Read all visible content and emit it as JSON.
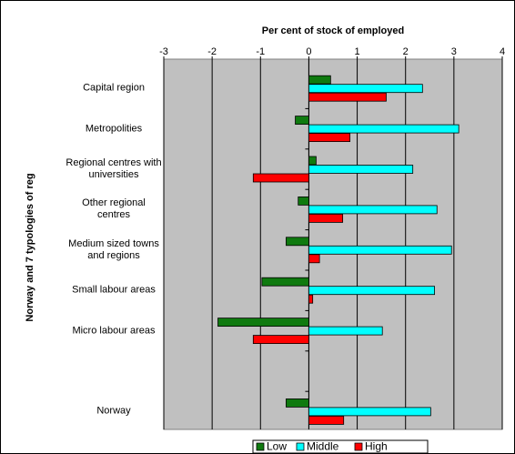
{
  "chart_data": {
    "type": "hbar",
    "title": "Per cent of stock of employed",
    "y_label": "Norway and 7 typologies of reg",
    "categories": [
      "Capital region",
      "Metropolities",
      "Regional centres with\nuniversities",
      "Other regional\ncentres",
      "Medium sized towns\nand regions",
      "Small labour areas",
      "Micro labour areas",
      null,
      "Norway"
    ],
    "series": [
      {
        "name": "Low",
        "color": "#0f7a0f",
        "values": [
          0.45,
          -0.28,
          0.15,
          -0.22,
          -0.47,
          -0.97,
          -1.88,
          null,
          -0.47
        ]
      },
      {
        "name": "Middle",
        "color": "#00ffff",
        "values": [
          2.35,
          3.1,
          2.15,
          2.65,
          2.95,
          2.6,
          1.52,
          null,
          2.52
        ]
      },
      {
        "name": "High",
        "color": "#ff0000",
        "values": [
          1.6,
          0.85,
          -1.15,
          0.7,
          0.22,
          0.08,
          -1.15,
          null,
          0.72
        ]
      }
    ],
    "xlim": [
      -3,
      4
    ],
    "xticks": [
      -3,
      -2,
      -1,
      0,
      1,
      2,
      3,
      4
    ],
    "grid": true,
    "legend": "bottom"
  }
}
